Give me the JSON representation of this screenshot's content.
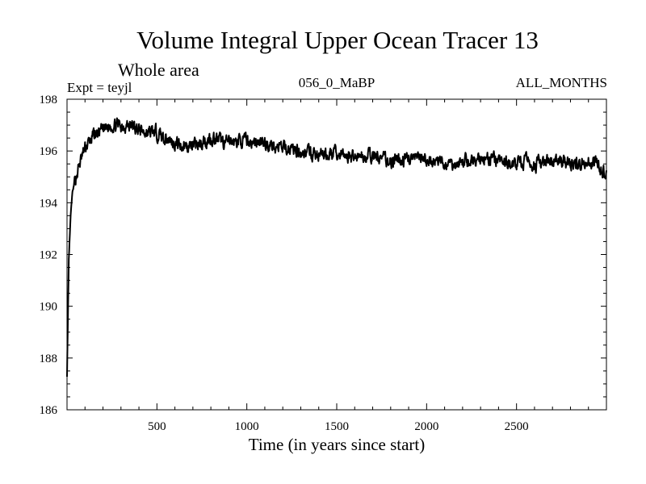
{
  "chart_data": {
    "type": "line",
    "title": "Volume Integral Upper Ocean Tracer 13",
    "subtitle": "Whole area",
    "expt_label": "Expt = teyjl",
    "run_label": "056_0_MaBP",
    "months_label": "ALL_MONTHS",
    "xlabel": "Time (in years since start)",
    "ylabel": "",
    "xlim": [
      0,
      3000
    ],
    "ylim": [
      186,
      198
    ],
    "xticks": [
      500,
      1000,
      1500,
      2000,
      2500
    ],
    "yticks": [
      186,
      188,
      190,
      192,
      194,
      196,
      198
    ],
    "line_color": "#000000",
    "series": [
      {
        "name": "Volume Integral Upper Ocean Tracer 13",
        "x": [
          0,
          5,
          10,
          20,
          30,
          50,
          75,
          100,
          150,
          200,
          250,
          300,
          350,
          400,
          450,
          500,
          550,
          600,
          650,
          700,
          750,
          800,
          850,
          900,
          950,
          1000,
          1050,
          1100,
          1150,
          1200,
          1250,
          1300,
          1350,
          1400,
          1450,
          1500,
          1550,
          1600,
          1650,
          1700,
          1750,
          1800,
          1850,
          1900,
          1950,
          2000,
          2050,
          2100,
          2150,
          2200,
          2250,
          2300,
          2350,
          2400,
          2450,
          2500,
          2550,
          2600,
          2650,
          2700,
          2750,
          2800,
          2850,
          2900,
          2950,
          3000
        ],
        "values": [
          187.3,
          189.5,
          191.8,
          193.5,
          194.4,
          195.0,
          195.6,
          196.1,
          196.6,
          196.8,
          197.0,
          197.0,
          197.0,
          196.8,
          196.7,
          196.7,
          196.5,
          196.3,
          196.2,
          196.2,
          196.3,
          196.5,
          196.4,
          196.3,
          196.4,
          196.4,
          196.3,
          196.3,
          196.2,
          196.1,
          196.1,
          196.0,
          195.9,
          195.8,
          195.9,
          195.9,
          195.8,
          195.8,
          195.8,
          195.8,
          195.7,
          195.6,
          195.6,
          195.7,
          195.7,
          195.6,
          195.6,
          195.5,
          195.5,
          195.6,
          195.6,
          195.7,
          195.7,
          195.6,
          195.5,
          195.5,
          195.6,
          195.5,
          195.5,
          195.6,
          195.6,
          195.5,
          195.5,
          195.6,
          195.5,
          195.1
        ]
      }
    ]
  }
}
